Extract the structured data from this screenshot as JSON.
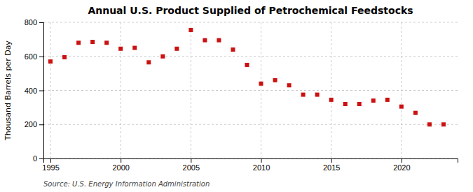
{
  "chart_data": {
    "type": "scatter",
    "title": "Annual U.S. Product Supplied of Petrochemical Feedstocks",
    "ylabel": "Thousand Barrels per Day",
    "annotations": [
      "Source: U.S. Energy Information Administration"
    ],
    "x": [
      1995,
      1996,
      1997,
      1998,
      1999,
      2000,
      2001,
      2002,
      2003,
      2004,
      2005,
      2006,
      2007,
      2008,
      2009,
      2010,
      2011,
      2012,
      2013,
      2014,
      2015,
      2016,
      2017,
      2018,
      2019,
      2020,
      2021,
      2022,
      2023
    ],
    "values": [
      570,
      595,
      680,
      685,
      680,
      645,
      650,
      565,
      600,
      645,
      755,
      695,
      695,
      640,
      550,
      440,
      460,
      430,
      375,
      375,
      345,
      320,
      320,
      340,
      345,
      305,
      268,
      200,
      200
    ],
    "color": "#cc1111",
    "marker": "square",
    "xlim": [
      1994.5,
      2024
    ],
    "xticks": [
      1995,
      2000,
      2005,
      2010,
      2015,
      2020
    ],
    "ylim": [
      0,
      800
    ],
    "yticks": [
      0,
      200,
      400,
      600,
      800
    ],
    "grid": true
  }
}
